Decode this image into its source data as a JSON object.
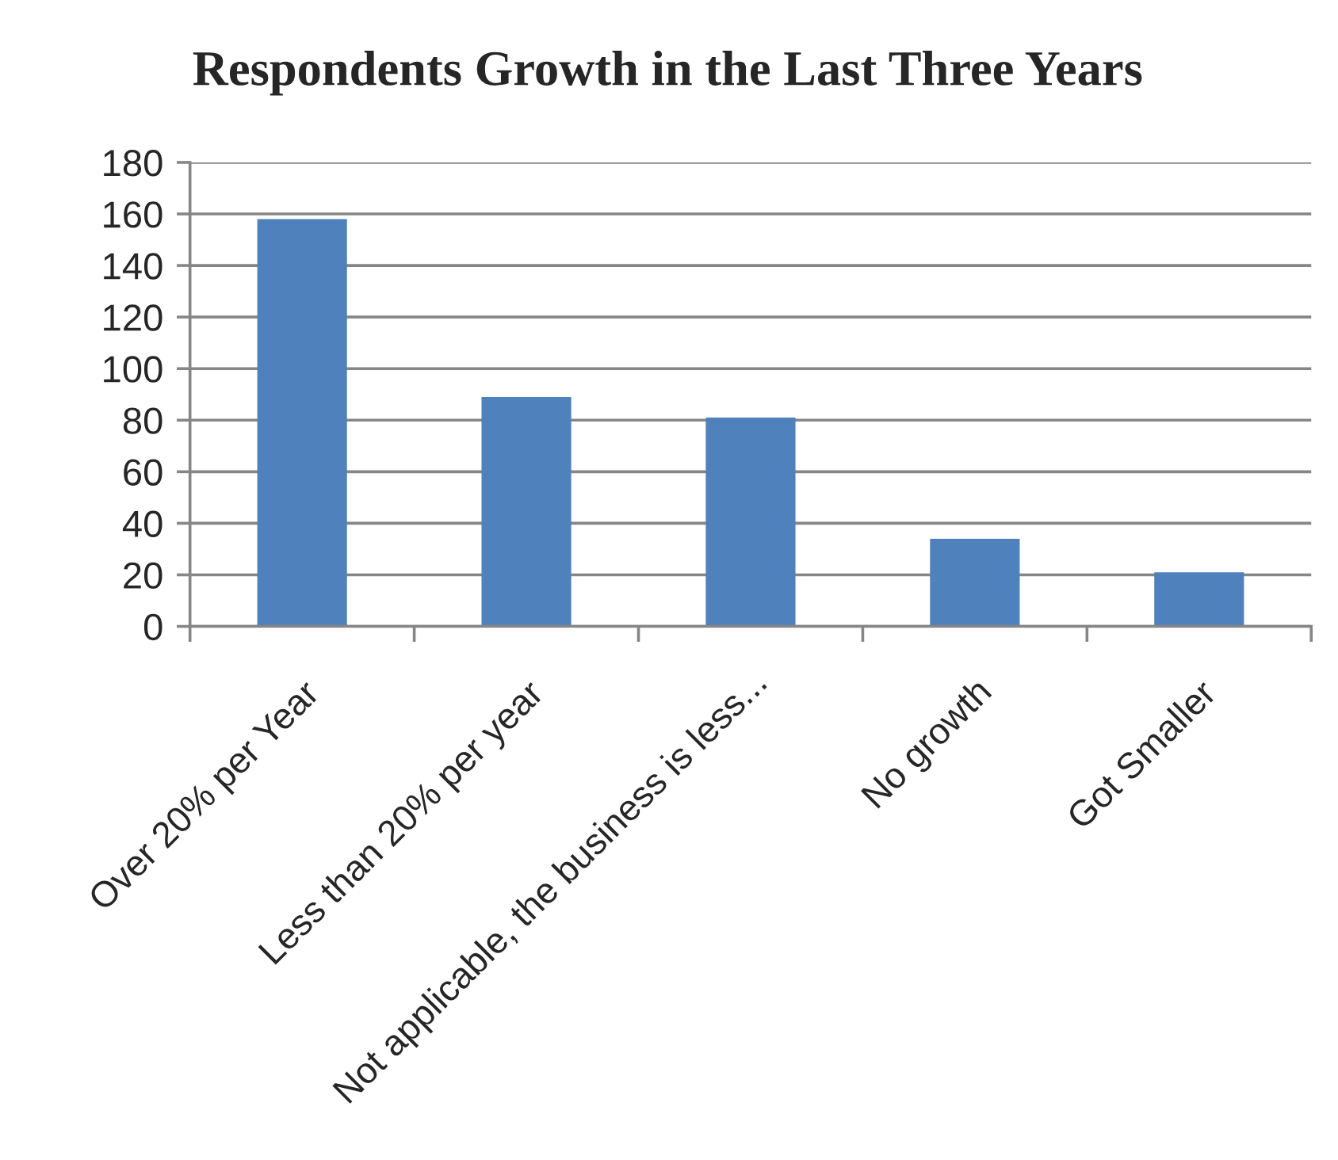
{
  "chart_data": {
    "type": "bar",
    "title": "Respondents Growth in the Last Three Years",
    "categories": [
      "Over 20% per Year",
      "Less than 20% per year",
      "Not applicable, the business is less...",
      "No growth",
      "Got Smaller"
    ],
    "values": [
      158,
      89,
      81,
      34,
      21
    ],
    "color": "#4f81bd",
    "ylim": [
      0,
      180
    ],
    "yticks": [
      0,
      20,
      40,
      60,
      80,
      100,
      120,
      140,
      160,
      180
    ],
    "grid": "y"
  }
}
